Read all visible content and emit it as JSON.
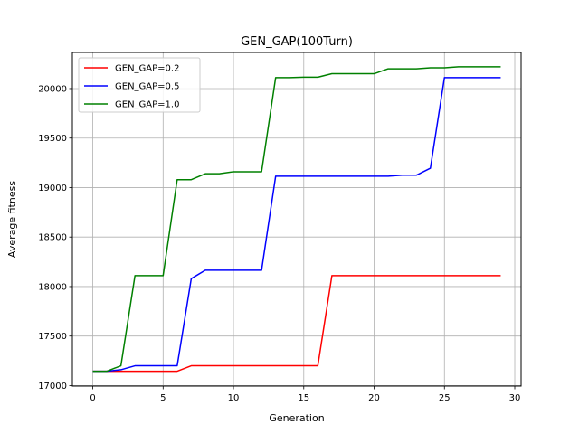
{
  "chart_data": {
    "type": "line",
    "title": "GEN_GAP(100Turn)",
    "xlabel": "Generation",
    "ylabel": "Average fitness",
    "xlim": [
      -1.45,
      30.45
    ],
    "ylim": [
      16995,
      20365
    ],
    "xticks": [
      0,
      5,
      10,
      15,
      20,
      25,
      30
    ],
    "yticks": [
      17000,
      17500,
      18000,
      18500,
      19000,
      19500,
      20000
    ],
    "grid": true,
    "legend_position": "top-left",
    "x": [
      0,
      1,
      2,
      3,
      4,
      5,
      6,
      7,
      8,
      9,
      10,
      11,
      12,
      13,
      14,
      15,
      16,
      17,
      18,
      19,
      20,
      21,
      22,
      23,
      24,
      25,
      26,
      27,
      28,
      29
    ],
    "series": [
      {
        "name": "GEN_GAP=0.2",
        "color": "#ff0000",
        "values": [
          17145,
          17145,
          17145,
          17145,
          17145,
          17145,
          17145,
          17200,
          17200,
          17200,
          17200,
          17200,
          17200,
          17200,
          17200,
          17200,
          17200,
          18110,
          18110,
          18110,
          18110,
          18110,
          18110,
          18110,
          18110,
          18110,
          18110,
          18110,
          18110,
          18110
        ]
      },
      {
        "name": "GEN_GAP=0.5",
        "color": "#0000ff",
        "values": [
          17145,
          17145,
          17160,
          17200,
          17200,
          17200,
          17200,
          18080,
          18165,
          18165,
          18165,
          18165,
          18165,
          19115,
          19115,
          19115,
          19115,
          19115,
          19115,
          19115,
          19115,
          19115,
          19125,
          19125,
          19195,
          20110,
          20110,
          20110,
          20110,
          20110
        ]
      },
      {
        "name": "GEN_GAP=1.0",
        "color": "#008000",
        "values": [
          17145,
          17145,
          17200,
          18110,
          18110,
          18110,
          19080,
          19080,
          19140,
          19140,
          19160,
          19160,
          19160,
          20110,
          20110,
          20115,
          20115,
          20150,
          20150,
          20150,
          20150,
          20200,
          20200,
          20200,
          20210,
          20210,
          20220,
          20220,
          20220,
          20220
        ]
      }
    ]
  }
}
